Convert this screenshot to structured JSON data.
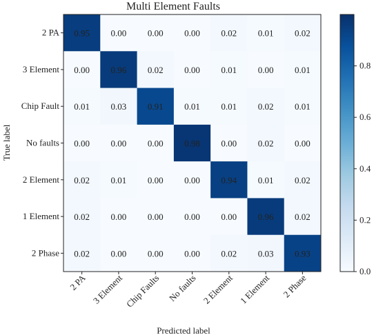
{
  "chart_data": {
    "type": "heatmap",
    "title": "Multi Element Faults",
    "xlabel": "Predicted label",
    "ylabel": "True label",
    "row_labels": [
      "2 PA",
      "3 Element",
      "Chip Fault",
      "No faults",
      "2 Element",
      "1 Element",
      "2 Phase"
    ],
    "col_labels": [
      "2 PA",
      "3 Element",
      "Chip Faults",
      "No faults",
      "2 Element",
      "1 Element",
      "2 Phase"
    ],
    "values": [
      [
        0.95,
        0.0,
        0.0,
        0.0,
        0.02,
        0.01,
        0.02
      ],
      [
        0.0,
        0.96,
        0.02,
        0.0,
        0.01,
        0.0,
        0.01
      ],
      [
        0.01,
        0.03,
        0.91,
        0.01,
        0.01,
        0.02,
        0.01
      ],
      [
        0.0,
        0.0,
        0.0,
        0.98,
        0.0,
        0.02,
        0.0
      ],
      [
        0.02,
        0.01,
        0.0,
        0.0,
        0.94,
        0.01,
        0.02
      ],
      [
        0.02,
        0.0,
        0.0,
        0.0,
        0.0,
        0.96,
        0.02
      ],
      [
        0.02,
        0.0,
        0.0,
        0.0,
        0.02,
        0.03,
        0.93
      ]
    ],
    "value_labels": [
      [
        "0.95",
        "0.00",
        "0.00",
        "0.00",
        "0.02",
        "0.01",
        "0.02"
      ],
      [
        "0.00",
        "0.96",
        "0.02",
        "0.00",
        "0.01",
        "0.00",
        "0.01"
      ],
      [
        "0.01",
        "0.03",
        "0.91",
        "0.01",
        "0.01",
        "0.02",
        "0.01"
      ],
      [
        "0.00",
        "0.00",
        "0.00",
        "0.98",
        "0.00",
        "0.02",
        "0.00"
      ],
      [
        "0.02",
        "0.01",
        "0.00",
        "0.00",
        "0.94",
        "0.01",
        "0.02"
      ],
      [
        "0.02",
        "0.00",
        "0.00",
        "0.00",
        "0.00",
        "0.96",
        "0.02"
      ],
      [
        "0.02",
        "0.00",
        "0.00",
        "0.00",
        "0.02",
        "0.03",
        "0.93"
      ]
    ],
    "colorbar": {
      "range": [
        0.0,
        1.0
      ],
      "ticks": [
        0.0,
        0.2,
        0.4,
        0.6,
        0.8
      ],
      "tick_labels": [
        "0.0",
        "0.2",
        "0.4",
        "0.6",
        "0.8"
      ]
    },
    "colormap": "Blues",
    "colors": {
      "low": "#f7fbff",
      "high": "#08306b",
      "text_dark_bg": "#ffffff",
      "text_light_bg": "#222222"
    }
  }
}
